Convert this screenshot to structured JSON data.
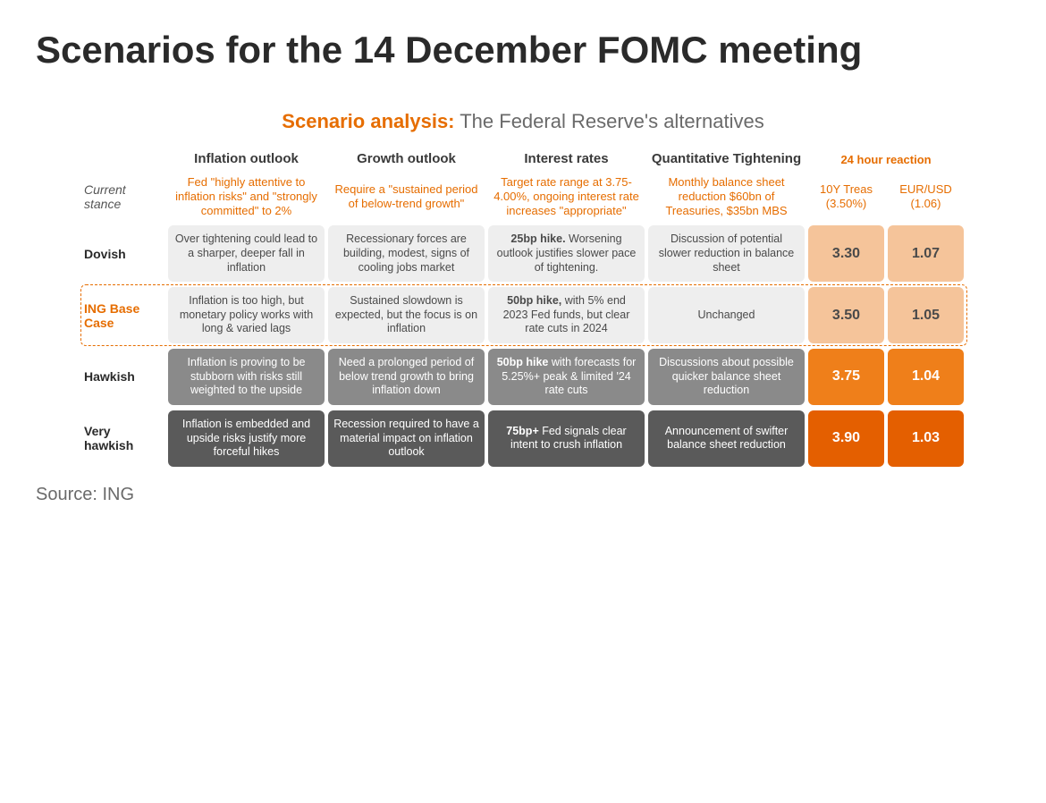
{
  "page": {
    "title": "Scenarios for the 14 December FOMC meeting",
    "source": "Source: ING"
  },
  "analysis": {
    "title_accent": "Scenario analysis:",
    "title_rest": " The Federal Reserve's alternatives"
  },
  "columns": {
    "inflation": "Inflation outlook",
    "growth": "Growth outlook",
    "rates": "Interest rates",
    "qt": "Quantitative Tightening",
    "reaction": "24 hour reaction",
    "treas": "10Y Treas (3.50%)",
    "eur": "EUR/USD (1.06)"
  },
  "current": {
    "label": "Current stance",
    "inflation": "Fed \"highly attentive to inflation risks\" and \"strongly committed\" to 2%",
    "growth": "Require a \"sustained period of below-trend growth\"",
    "rates": "Target rate range at 3.75-4.00%, ongoing interest rate increases \"appropriate\"",
    "qt": "Monthly balance sheet reduction $60bn of Treasuries, $35bn MBS"
  },
  "colors": {
    "light_grey": "#eeeeee",
    "mid_grey": "#8a8a8a",
    "dark_grey": "#5a5a5a",
    "light_orange": "#f5c49a",
    "mid_orange": "#ef7f1a",
    "dark_orange": "#e45f00",
    "text_light": "#4a4a4a",
    "text_white": "#ffffff"
  },
  "rows": [
    {
      "id": "dovish",
      "label": "Dovish",
      "label_class": "",
      "cell_bg": "light_grey",
      "cell_fg": "text_light",
      "num_bg": "light_orange",
      "num_fg": "text_light",
      "inflation": "Over tightening could lead to a sharper, deeper fall in inflation",
      "growth": "Recessionary forces are building, modest, signs of cooling jobs market",
      "rates_bold": "25bp hike.",
      "rates_rest": " Worsening outlook justifies slower pace of tightening.",
      "qt": "Discussion of potential slower reduction in balance sheet",
      "treas": "3.30",
      "eur": "1.07"
    },
    {
      "id": "base",
      "label": "ING Base Case",
      "label_class": "accent",
      "cell_bg": "light_grey",
      "cell_fg": "text_light",
      "num_bg": "light_orange",
      "num_fg": "text_light",
      "inflation": "Inflation is too high, but monetary policy works with long & varied lags",
      "growth": "Sustained slowdown is expected, but the focus is on inflation",
      "rates_bold": "50bp hike,",
      "rates_rest": " with 5% end 2023 Fed funds, but clear rate cuts in 2024",
      "qt": "Unchanged",
      "treas": "3.50",
      "eur": "1.05"
    },
    {
      "id": "hawkish",
      "label": "Hawkish",
      "label_class": "",
      "cell_bg": "mid_grey",
      "cell_fg": "text_white",
      "num_bg": "mid_orange",
      "num_fg": "text_white",
      "inflation": "Inflation is proving to be stubborn with risks still weighted to the upside",
      "growth": "Need a prolonged period of below trend growth to bring inflation down",
      "rates_bold": "50bp hike",
      "rates_rest": " with forecasts for 5.25%+ peak & limited '24 rate cuts",
      "qt": "Discussions about possible quicker balance sheet reduction",
      "treas": "3.75",
      "eur": "1.04"
    },
    {
      "id": "very-hawkish",
      "label": "Very hawkish",
      "label_class": "",
      "cell_bg": "dark_grey",
      "cell_fg": "text_white",
      "num_bg": "dark_orange",
      "num_fg": "text_white",
      "inflation": "Inflation is embedded and upside risks justify more forceful hikes",
      "growth": "Recession required to have a material impact on inflation outlook",
      "rates_bold": "75bp+",
      "rates_rest": " Fed signals clear intent to crush inflation",
      "qt": "Announcement of swifter balance sheet reduction",
      "treas": "3.90",
      "eur": "1.03"
    }
  ]
}
